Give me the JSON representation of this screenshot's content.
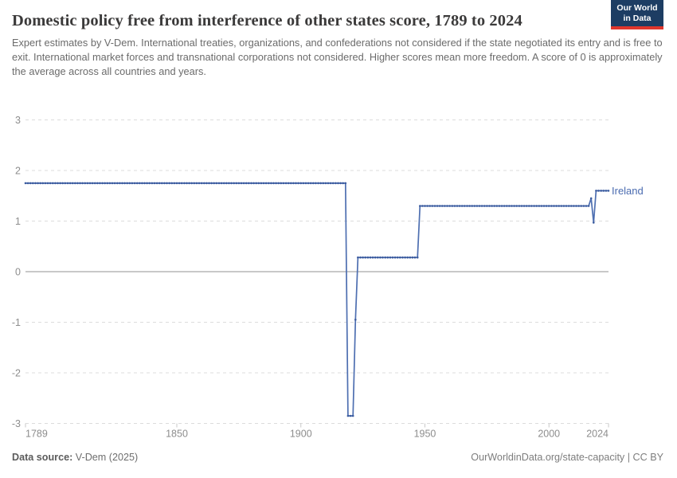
{
  "header": {
    "title": "Domestic policy free from interference of other states score, 1789 to 2024",
    "subtitle": "Expert estimates by V-Dem. International treaties, organizations, and confederations not considered if the state negotiated its entry and is free to exit. International market forces and transnational corporations not considered. Higher scores mean more freedom. A score of 0 is approximately the average across all countries and years.",
    "logo": {
      "line1": "Our World",
      "line2": "in Data",
      "bg_color": "#1d3d63",
      "bar_color": "#e0362c"
    }
  },
  "chart_data": {
    "type": "line",
    "title": "Domestic policy free from interference of other states score, 1789 to 2024",
    "xlabel": "",
    "ylabel": "",
    "x_range": [
      1789,
      2024
    ],
    "y_range": [
      -3,
      3
    ],
    "x_ticks": [
      1789,
      1850,
      1900,
      1950,
      2000,
      2024
    ],
    "y_ticks": [
      3,
      2,
      1,
      0,
      -1,
      -2,
      -3
    ],
    "grid": "horizontal-dashed",
    "legend_position": "end-of-line-right",
    "series": [
      {
        "name": "Ireland",
        "color": "#4e6fb1",
        "marker_color": "#3b5b9e",
        "label_color": "#4a6bb0",
        "segments": [
          {
            "start_year": 1789,
            "end_year": 1918,
            "value": 1.75
          },
          {
            "start_year": 1919,
            "end_year": 1921,
            "value": -2.85
          },
          {
            "start_year": 1922,
            "end_year": 1922,
            "value": -0.95
          },
          {
            "start_year": 1923,
            "end_year": 1947,
            "value": 0.28
          },
          {
            "start_year": 1948,
            "end_year": 2016,
            "value": 1.3
          },
          {
            "start_year": 2017,
            "end_year": 2017,
            "value": 1.45
          },
          {
            "start_year": 2018,
            "end_year": 2018,
            "value": 0.97
          },
          {
            "start_year": 2019,
            "end_year": 2024,
            "value": 1.6
          }
        ]
      }
    ]
  },
  "footer": {
    "data_source_label": "Data source:",
    "data_source_value": "V-Dem (2025)",
    "attribution": "OurWorldinData.org/state-capacity | CC BY"
  },
  "colors": {
    "axis_label": "#8d8d8d",
    "gridline": "#dcdcdc",
    "zero_line": "#b5b5b5",
    "tick_mark": "#c9c9c9",
    "title": "#3b3a3a",
    "subtitle": "#6b6b6b"
  }
}
